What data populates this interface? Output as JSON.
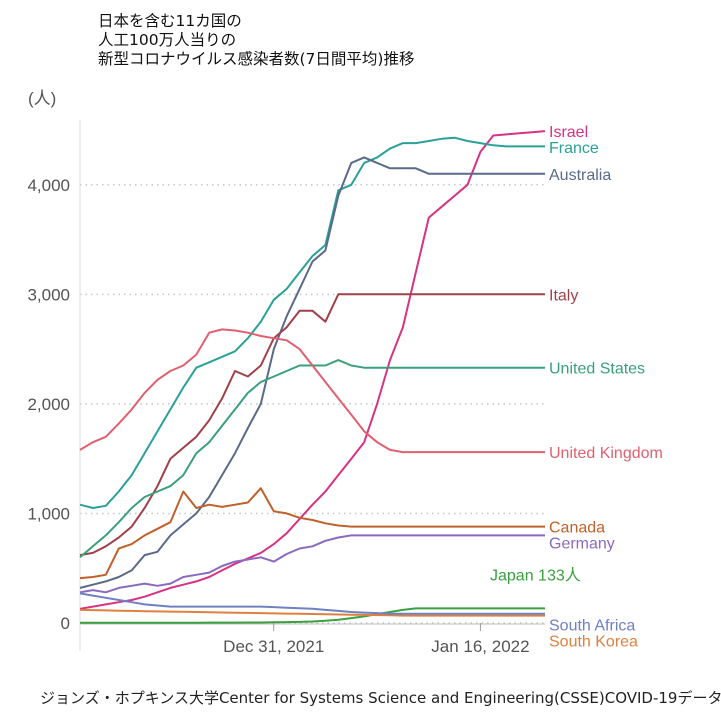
{
  "title_lines": [
    "日本を含む11カ国の",
    "人工100万人当りの",
    "新型コロナウイルス感染者数(7日間平均)推移"
  ],
  "source": "ジョンズ・ホプキンス大学Center for Systems Science and Engineering(CSSE)COVID-19データ",
  "chart_data": {
    "type": "line",
    "title": "日本を含む11カ国の 人工100万人当りの 新型コロナウイルス感染者数(7日間平均)推移",
    "ylabel": "(人)",
    "ylim": [
      0,
      4500
    ],
    "xlim": [
      "2021-12-16",
      "2022-01-21"
    ],
    "y_ticks": [
      {
        "value": 0,
        "label": "0"
      },
      {
        "value": 1000,
        "label": "1,000"
      },
      {
        "value": 2000,
        "label": "2,000"
      },
      {
        "value": 3000,
        "label": "3,000"
      },
      {
        "value": 4000,
        "label": "4,000"
      }
    ],
    "x_ticks": [
      {
        "value": "2021-12-31",
        "label": "Dec 31, 2021"
      },
      {
        "value": "2022-01-16",
        "label": "Jan 16, 2022"
      }
    ],
    "x": [
      "2021-12-16",
      "2021-12-17",
      "2021-12-18",
      "2021-12-19",
      "2021-12-20",
      "2021-12-21",
      "2021-12-22",
      "2021-12-23",
      "2021-12-24",
      "2021-12-25",
      "2021-12-26",
      "2021-12-27",
      "2021-12-28",
      "2021-12-29",
      "2021-12-30",
      "2021-12-31",
      "2022-01-01",
      "2022-01-02",
      "2022-01-03",
      "2022-01-04",
      "2022-01-05",
      "2022-01-06",
      "2022-01-07",
      "2022-01-08",
      "2022-01-09",
      "2022-01-10",
      "2022-01-11",
      "2022-01-12",
      "2022-01-13",
      "2022-01-14",
      "2022-01-15",
      "2022-01-16",
      "2022-01-17",
      "2022-01-18",
      "2022-01-19",
      "2022-01-20",
      "2022-01-21"
    ],
    "grid": true,
    "series": [
      {
        "name": "Israel",
        "label": "Israel",
        "color": "#d63384",
        "values": [
          130,
          150,
          170,
          190,
          210,
          240,
          280,
          320,
          350,
          380,
          420,
          480,
          540,
          590,
          640,
          720,
          820,
          950,
          1080,
          1200,
          1350,
          1500,
          1650,
          2000,
          2400,
          2700,
          3200,
          3700,
          3800,
          3900,
          4000,
          4300,
          4450,
          4460,
          4470,
          4480,
          4490
        ]
      },
      {
        "name": "France",
        "label": "France",
        "color": "#2aa198",
        "values": [
          1080,
          1050,
          1070,
          1200,
          1350,
          1550,
          1750,
          1950,
          2150,
          2330,
          2380,
          2430,
          2480,
          2600,
          2750,
          2950,
          3050,
          3200,
          3350,
          3450,
          3950,
          4000,
          4200,
          4250,
          4330,
          4380,
          4380,
          4400,
          4420,
          4430,
          4400,
          4380,
          4360,
          4350,
          4350,
          4350,
          4350
        ]
      },
      {
        "name": "Australia",
        "label": "Australia",
        "color": "#5a6a8a",
        "values": [
          320,
          350,
          380,
          420,
          480,
          620,
          650,
          800,
          900,
          1000,
          1150,
          1350,
          1550,
          1780,
          2000,
          2500,
          2800,
          3050,
          3300,
          3400,
          3900,
          4200,
          4250,
          4200,
          4150,
          4150,
          4150,
          4100,
          4100,
          4100,
          4100,
          4100,
          4100,
          4100,
          4100,
          4100,
          4100
        ]
      },
      {
        "name": "Italy",
        "label": "Italy",
        "color": "#a0404a",
        "values": [
          620,
          640,
          700,
          780,
          880,
          1050,
          1250,
          1500,
          1600,
          1700,
          1850,
          2050,
          2300,
          2250,
          2350,
          2600,
          2700,
          2850,
          2850,
          2750,
          3000,
          3000,
          3000,
          3000,
          3000,
          3000,
          3000,
          3000,
          3000,
          3000,
          3000,
          3000,
          3000,
          3000,
          3000,
          3000,
          3000
        ]
      },
      {
        "name": "United States",
        "label": "United States",
        "color": "#3aa07a",
        "values": [
          600,
          700,
          800,
          920,
          1050,
          1150,
          1200,
          1250,
          1350,
          1550,
          1650,
          1800,
          1950,
          2100,
          2200,
          2250,
          2300,
          2350,
          2350,
          2350,
          2400,
          2350,
          2330,
          2330,
          2330,
          2330,
          2330,
          2330,
          2330,
          2330,
          2330,
          2330,
          2330,
          2330,
          2330,
          2330,
          2330
        ]
      },
      {
        "name": "United Kingdom",
        "label": "United Kingdom",
        "color": "#e06070",
        "values": [
          1580,
          1650,
          1700,
          1820,
          1950,
          2100,
          2220,
          2300,
          2350,
          2450,
          2650,
          2680,
          2670,
          2650,
          2620,
          2600,
          2580,
          2500,
          2350,
          2200,
          2050,
          1900,
          1750,
          1650,
          1580,
          1560,
          1560,
          1560,
          1560,
          1560,
          1560,
          1560,
          1560,
          1560,
          1560,
          1560,
          1560
        ]
      },
      {
        "name": "Canada",
        "label": "Canada",
        "color": "#c0602a",
        "values": [
          410,
          420,
          440,
          680,
          720,
          800,
          860,
          920,
          1200,
          1050,
          1080,
          1060,
          1080,
          1100,
          1230,
          1020,
          1000,
          960,
          940,
          910,
          890,
          880,
          880,
          880,
          880,
          880,
          880,
          880,
          880,
          880,
          880,
          880,
          880,
          880,
          880,
          880,
          880
        ]
      },
      {
        "name": "Germany",
        "label": "Germany",
        "color": "#8a6ac0",
        "values": [
          280,
          300,
          280,
          320,
          340,
          360,
          340,
          360,
          420,
          440,
          460,
          520,
          560,
          580,
          600,
          560,
          630,
          680,
          700,
          750,
          780,
          800,
          800,
          800,
          800,
          800,
          800,
          800,
          800,
          800,
          800,
          800,
          800,
          800,
          800,
          800,
          800
        ]
      },
      {
        "name": "Japan",
        "label": "Japan 133人",
        "color": "#3aa040",
        "values": [
          3,
          3,
          3,
          3,
          3,
          3,
          3,
          3,
          3,
          3,
          4,
          4,
          4,
          5,
          5,
          6,
          8,
          10,
          14,
          20,
          30,
          45,
          60,
          80,
          100,
          120,
          133,
          133,
          133,
          133,
          133,
          133,
          133,
          133,
          133,
          133,
          133
        ]
      },
      {
        "name": "South Korea",
        "label": "South Korea",
        "color": "#e08040",
        "values": [
          120,
          118,
          115,
          112,
          110,
          108,
          106,
          104,
          102,
          100,
          98,
          96,
          94,
          92,
          90,
          88,
          86,
          84,
          82,
          80,
          78,
          76,
          74,
          72,
          70,
          68,
          68,
          68,
          68,
          68,
          68,
          68,
          68,
          68,
          68,
          68,
          68
        ]
      },
      {
        "name": "South Africa",
        "label": "South Africa",
        "color": "#7080c0",
        "values": [
          270,
          250,
          230,
          210,
          190,
          170,
          160,
          150,
          150,
          150,
          150,
          150,
          150,
          150,
          150,
          145,
          140,
          135,
          130,
          120,
          110,
          100,
          95,
          90,
          85,
          85,
          85,
          85,
          85,
          85,
          85,
          85,
          85,
          85,
          85,
          85,
          85
        ]
      }
    ]
  }
}
